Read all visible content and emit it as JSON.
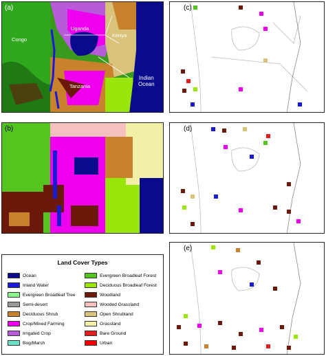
{
  "panels": {
    "a": {
      "label": "(a)",
      "places": {
        "congo": "Congo",
        "uganda": "Uganda",
        "kenya": "Kenya",
        "tanzania": "Tanzania",
        "indian_ocean": "Indian\nOcean"
      }
    },
    "b": {
      "label": "(b)"
    },
    "c": {
      "label": "(c)"
    },
    "d": {
      "label": "(d)"
    },
    "e": {
      "label": "(e)"
    }
  },
  "legend": {
    "title": "Land Cover Types",
    "items": [
      {
        "label": "Ocean",
        "color": "#0a0a8c"
      },
      {
        "label": "Evergreen Broadleaf Forest",
        "color": "#54c51e"
      },
      {
        "label": "Inland Water",
        "color": "#1a1ad4"
      },
      {
        "label": "Deciduous Broadleaf Forest",
        "color": "#9ae60a"
      },
      {
        "label": "Evergreen Broadleaf Tree",
        "color": "#8df58d"
      },
      {
        "label": "Woodland",
        "color": "#6b1a0a"
      },
      {
        "label": "Semi-desert",
        "color": "#9a9a9a"
      },
      {
        "label": "Wooded Grassland",
        "color": "#f5c0c0"
      },
      {
        "label": "Deciduous Shrub",
        "color": "#c9822c"
      },
      {
        "label": "Open Shrubland",
        "color": "#d9c27a"
      },
      {
        "label": "Crop/Mixed Farming",
        "color": "#ee00ee"
      },
      {
        "label": "Grassland",
        "color": "#f2f0a6"
      },
      {
        "label": "Irrigated Crop",
        "color": "#b85ad9"
      },
      {
        "label": "Bare Ground",
        "color": "#e02020"
      },
      {
        "label": "Bog/Marsh",
        "color": "#6de0c8"
      },
      {
        "label": "Urban",
        "color": "#f00000"
      }
    ]
  }
}
